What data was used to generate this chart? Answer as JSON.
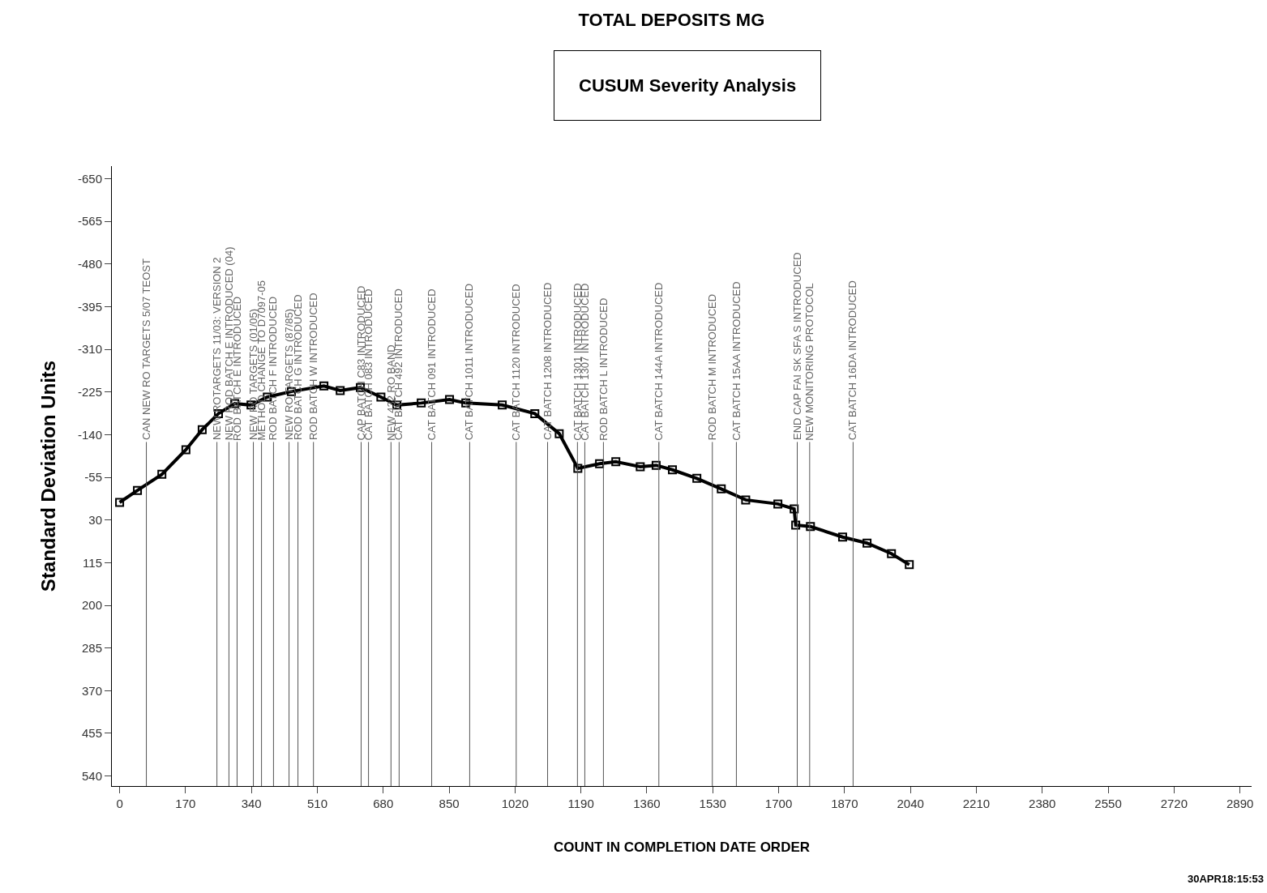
{
  "chart_data": {
    "type": "line",
    "title": "TOTAL DEPOSITS MG",
    "xlabel": "COUNT IN COMPLETION DATE ORDER",
    "ylabel": "Standard Deviation Units",
    "annotations": [
      "CUSUM Severity Analysis",
      "30APR18:15:53"
    ],
    "x": [
      0,
      46,
      109,
      171,
      213,
      255,
      297,
      339,
      381,
      443,
      527,
      569,
      621,
      674,
      715,
      778,
      851,
      893,
      987,
      1071,
      1134,
      1182,
      1238,
      1280,
      1343,
      1384,
      1426,
      1489,
      1552,
      1615,
      1698,
      1740,
      1744,
      1782,
      1865,
      1928,
      1991,
      2037
    ],
    "series": [
      {
        "color": "#000000",
        "values": [
          -5,
          -29,
          -61,
          -110,
          -150,
          -182,
          -202,
          -199,
          -215,
          -226,
          -237,
          -228,
          -234,
          -215,
          -199,
          -203,
          -210,
          -203,
          -199,
          -182,
          -142,
          -73,
          -82,
          -86,
          -76,
          -79,
          -70,
          -53,
          -32,
          -10,
          -2,
          8,
          40,
          43,
          64,
          76,
          97,
          119
        ]
      }
    ],
    "marker": "square",
    "line_style": "solid",
    "xlim": [
      -20,
      2920
    ],
    "xticks": [
      0,
      170,
      340,
      510,
      680,
      850,
      1020,
      1190,
      1360,
      1530,
      1700,
      1870,
      2040,
      2210,
      2380,
      2550,
      2720,
      2890
    ],
    "ylim": [
      560,
      -675
    ],
    "yticks": [
      -650,
      -565,
      -480,
      -395,
      -310,
      -225,
      -140,
      -55,
      30,
      115,
      200,
      285,
      370,
      455,
      540
    ],
    "ref_lines": [
      {
        "axis": "x",
        "value": 69,
        "label": "CAN NEW RO TARGETS 5/07 TEOST"
      },
      {
        "axis": "x",
        "value": 251,
        "label": "NEW ROTARGETS 11/03: VERSION 2"
      },
      {
        "axis": "x",
        "value": 282,
        "label": "NEW ROD BATCH E INTRODUCED (04)"
      },
      {
        "axis": "x",
        "value": 303,
        "label": "ROD BATCH E INTRODUCED"
      },
      {
        "axis": "x",
        "value": 345,
        "label": "NEW RO TARGETS (01/05)"
      },
      {
        "axis": "x",
        "value": 366,
        "label": "METHOD CHANGE TO D7097-05"
      },
      {
        "axis": "x",
        "value": 397,
        "label": "ROD BATCH F INTRODUCED"
      },
      {
        "axis": "x",
        "value": 437,
        "label": "NEW RO TARGETS (87/85)"
      },
      {
        "axis": "x",
        "value": 460,
        "label": "ROD BATCH G INTRODUCED"
      },
      {
        "axis": "x",
        "value": 500,
        "label": "ROD BATCH W INTRODUCED"
      },
      {
        "axis": "x",
        "value": 623,
        "label": "CAP BATCH C83 INTRODUCED"
      },
      {
        "axis": "x",
        "value": 642,
        "label": "CAT BATCH 083 INTRODUCED"
      },
      {
        "axis": "x",
        "value": 700,
        "label": "NEW 432 RO BAND"
      },
      {
        "axis": "x",
        "value": 721,
        "label": "CAT BATCH 492 INTRODUCED"
      },
      {
        "axis": "x",
        "value": 805,
        "label": "CAT BATCH 091 INTRODUCED"
      },
      {
        "axis": "x",
        "value": 903,
        "label": "CAT BATCH 1011 INTRODUCED"
      },
      {
        "axis": "x",
        "value": 1023,
        "label": "CAT BATCH 1120 INTRODUCED"
      },
      {
        "axis": "x",
        "value": 1104,
        "label": "CAT BATCH 1208 INTRODUCED"
      },
      {
        "axis": "x",
        "value": 1181,
        "label": "CAT BATCH 1301 INTRODUCED"
      },
      {
        "axis": "x",
        "value": 1200,
        "label": "CAT BATCH 1307 INTRODUCED"
      },
      {
        "axis": "x",
        "value": 1248,
        "label": "ROD BATCH L INTRODUCED"
      },
      {
        "axis": "x",
        "value": 1391,
        "label": "CAT BATCH 144A INTRODUCED"
      },
      {
        "axis": "x",
        "value": 1529,
        "label": "ROD BATCH M INTRODUCED"
      },
      {
        "axis": "x",
        "value": 1591,
        "label": "CAT BATCH 15AA INTRODUCED"
      },
      {
        "axis": "x",
        "value": 1748,
        "label": "END CAP FAI SK SFA S INTRODUCED"
      },
      {
        "axis": "x",
        "value": 1780,
        "label": "NEW MONITORING PROTOCOL"
      },
      {
        "axis": "x",
        "value": 1892,
        "label": "CAT BATCH 16DA INTRODUCED"
      }
    ]
  }
}
